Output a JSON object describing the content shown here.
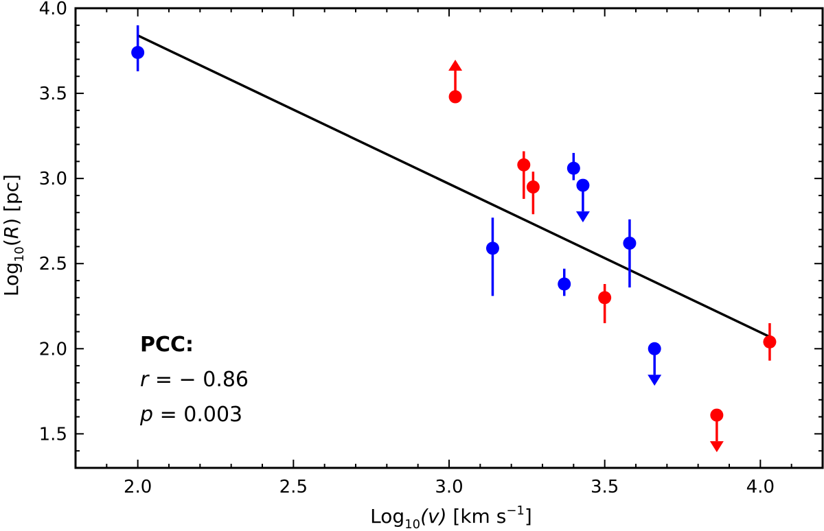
{
  "chart_data": {
    "type": "scatter",
    "xlabel": {
      "base": "Log",
      "sub": "10",
      "rest": "(v) [km s",
      "sup": "−1",
      "end": "]"
    },
    "ylabel": {
      "base": "Log",
      "sub": "10",
      "rest": "(R) [pc]"
    },
    "xlim": [
      1.8,
      4.2
    ],
    "ylim": [
      1.3,
      4.0
    ],
    "xticks": [
      2.0,
      2.5,
      3.0,
      3.5,
      4.0
    ],
    "xtick_labels": [
      "2.0",
      "2.5",
      "3.0",
      "3.5",
      "4.0"
    ],
    "yticks": [
      1.5,
      2.0,
      2.5,
      3.0,
      3.5,
      4.0
    ],
    "ytick_labels": [
      "1.5",
      "2.0",
      "2.5",
      "3.0",
      "3.5",
      "4.0"
    ],
    "grid": false,
    "colors": {
      "blue": "#0000ff",
      "red": "#ff0000",
      "fit": "#000000"
    },
    "series": [
      {
        "color": "blue",
        "points": [
          {
            "x": 2.0,
            "y": 3.74,
            "yerr_lo": 0.11,
            "yerr_hi": 0.16,
            "limit": "none"
          },
          {
            "x": 3.14,
            "y": 2.59,
            "yerr_lo": 0.28,
            "yerr_hi": 0.18,
            "limit": "none"
          },
          {
            "x": 3.37,
            "y": 2.38,
            "yerr_lo": 0.07,
            "yerr_hi": 0.09,
            "limit": "none"
          },
          {
            "x": 3.4,
            "y": 3.06,
            "yerr_lo": 0.07,
            "yerr_hi": 0.09,
            "limit": "none"
          },
          {
            "x": 3.43,
            "y": 2.96,
            "limit": "upper"
          },
          {
            "x": 3.58,
            "y": 2.62,
            "yerr_lo": 0.26,
            "yerr_hi": 0.14,
            "limit": "none"
          },
          {
            "x": 3.66,
            "y": 2.0,
            "limit": "upper"
          }
        ]
      },
      {
        "color": "red",
        "points": [
          {
            "x": 3.02,
            "y": 3.48,
            "limit": "lower"
          },
          {
            "x": 3.24,
            "y": 3.08,
            "yerr_lo": 0.2,
            "yerr_hi": 0.08,
            "limit": "none"
          },
          {
            "x": 3.27,
            "y": 2.95,
            "yerr_lo": 0.16,
            "yerr_hi": 0.09,
            "limit": "none"
          },
          {
            "x": 3.5,
            "y": 2.3,
            "yerr_lo": 0.15,
            "yerr_hi": 0.08,
            "limit": "none"
          },
          {
            "x": 3.86,
            "y": 1.61,
            "limit": "upper"
          },
          {
            "x": 4.03,
            "y": 2.04,
            "yerr_lo": 0.11,
            "yerr_hi": 0.11,
            "limit": "none"
          }
        ]
      }
    ],
    "fit_line": {
      "x": [
        2.0,
        4.03
      ],
      "y": [
        3.84,
        2.07
      ]
    },
    "annotation": {
      "title": "PCC:",
      "r_symbol": "r",
      "r_value": " = − 0.86",
      "p_symbol": "p",
      "p_value": " = 0.003"
    }
  }
}
